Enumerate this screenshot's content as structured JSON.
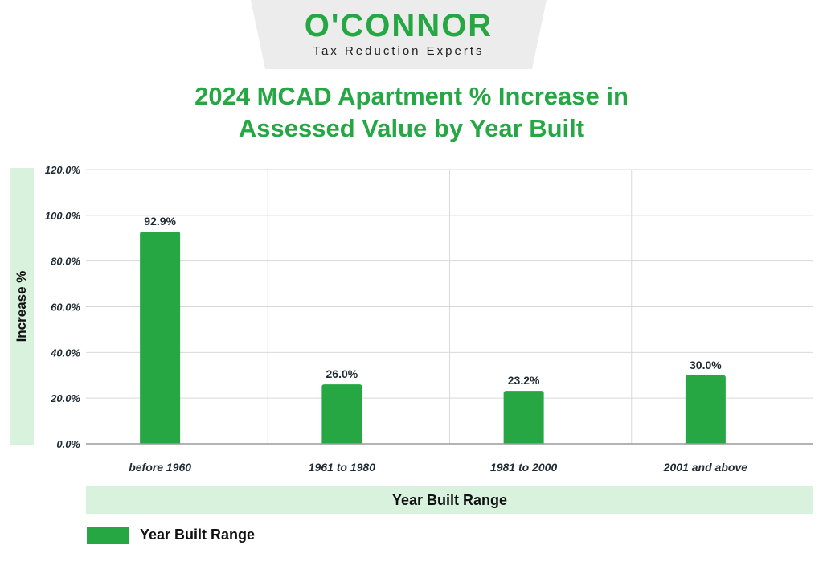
{
  "logo": {
    "wordmark": "O'CONNOR",
    "tagline": "Tax Reduction Experts"
  },
  "colors": {
    "brand_green": "#26a744",
    "band_green": "#d9f2de",
    "grid": "#d9d9d9",
    "text": "#1f2a33"
  },
  "chart_data": {
    "type": "bar",
    "title_lines": [
      "2024 MCAD Apartment % Increase in",
      "Assessed Value by Year Built"
    ],
    "categories": [
      "before 1960",
      "1961 to 1980",
      "1981 to 2000",
      "2001 and above"
    ],
    "series": [
      {
        "name": "Year Built Range",
        "values": [
          92.9,
          26.0,
          23.2,
          30.0
        ]
      }
    ],
    "data_labels": [
      "92.9%",
      "26.0%",
      "23.2%",
      "30.0%"
    ],
    "ylim": [
      0,
      120
    ],
    "y_ticks": [
      0,
      20,
      40,
      60,
      80,
      100,
      120
    ],
    "y_tick_labels": [
      "0.0%",
      "20.0%",
      "40.0%",
      "60.0%",
      "80.0%",
      "100.0%",
      "120.0%"
    ],
    "xlabel": "Year Built Range",
    "ylabel": "Increase %",
    "legend_position": "bottom-left",
    "grid": true
  }
}
